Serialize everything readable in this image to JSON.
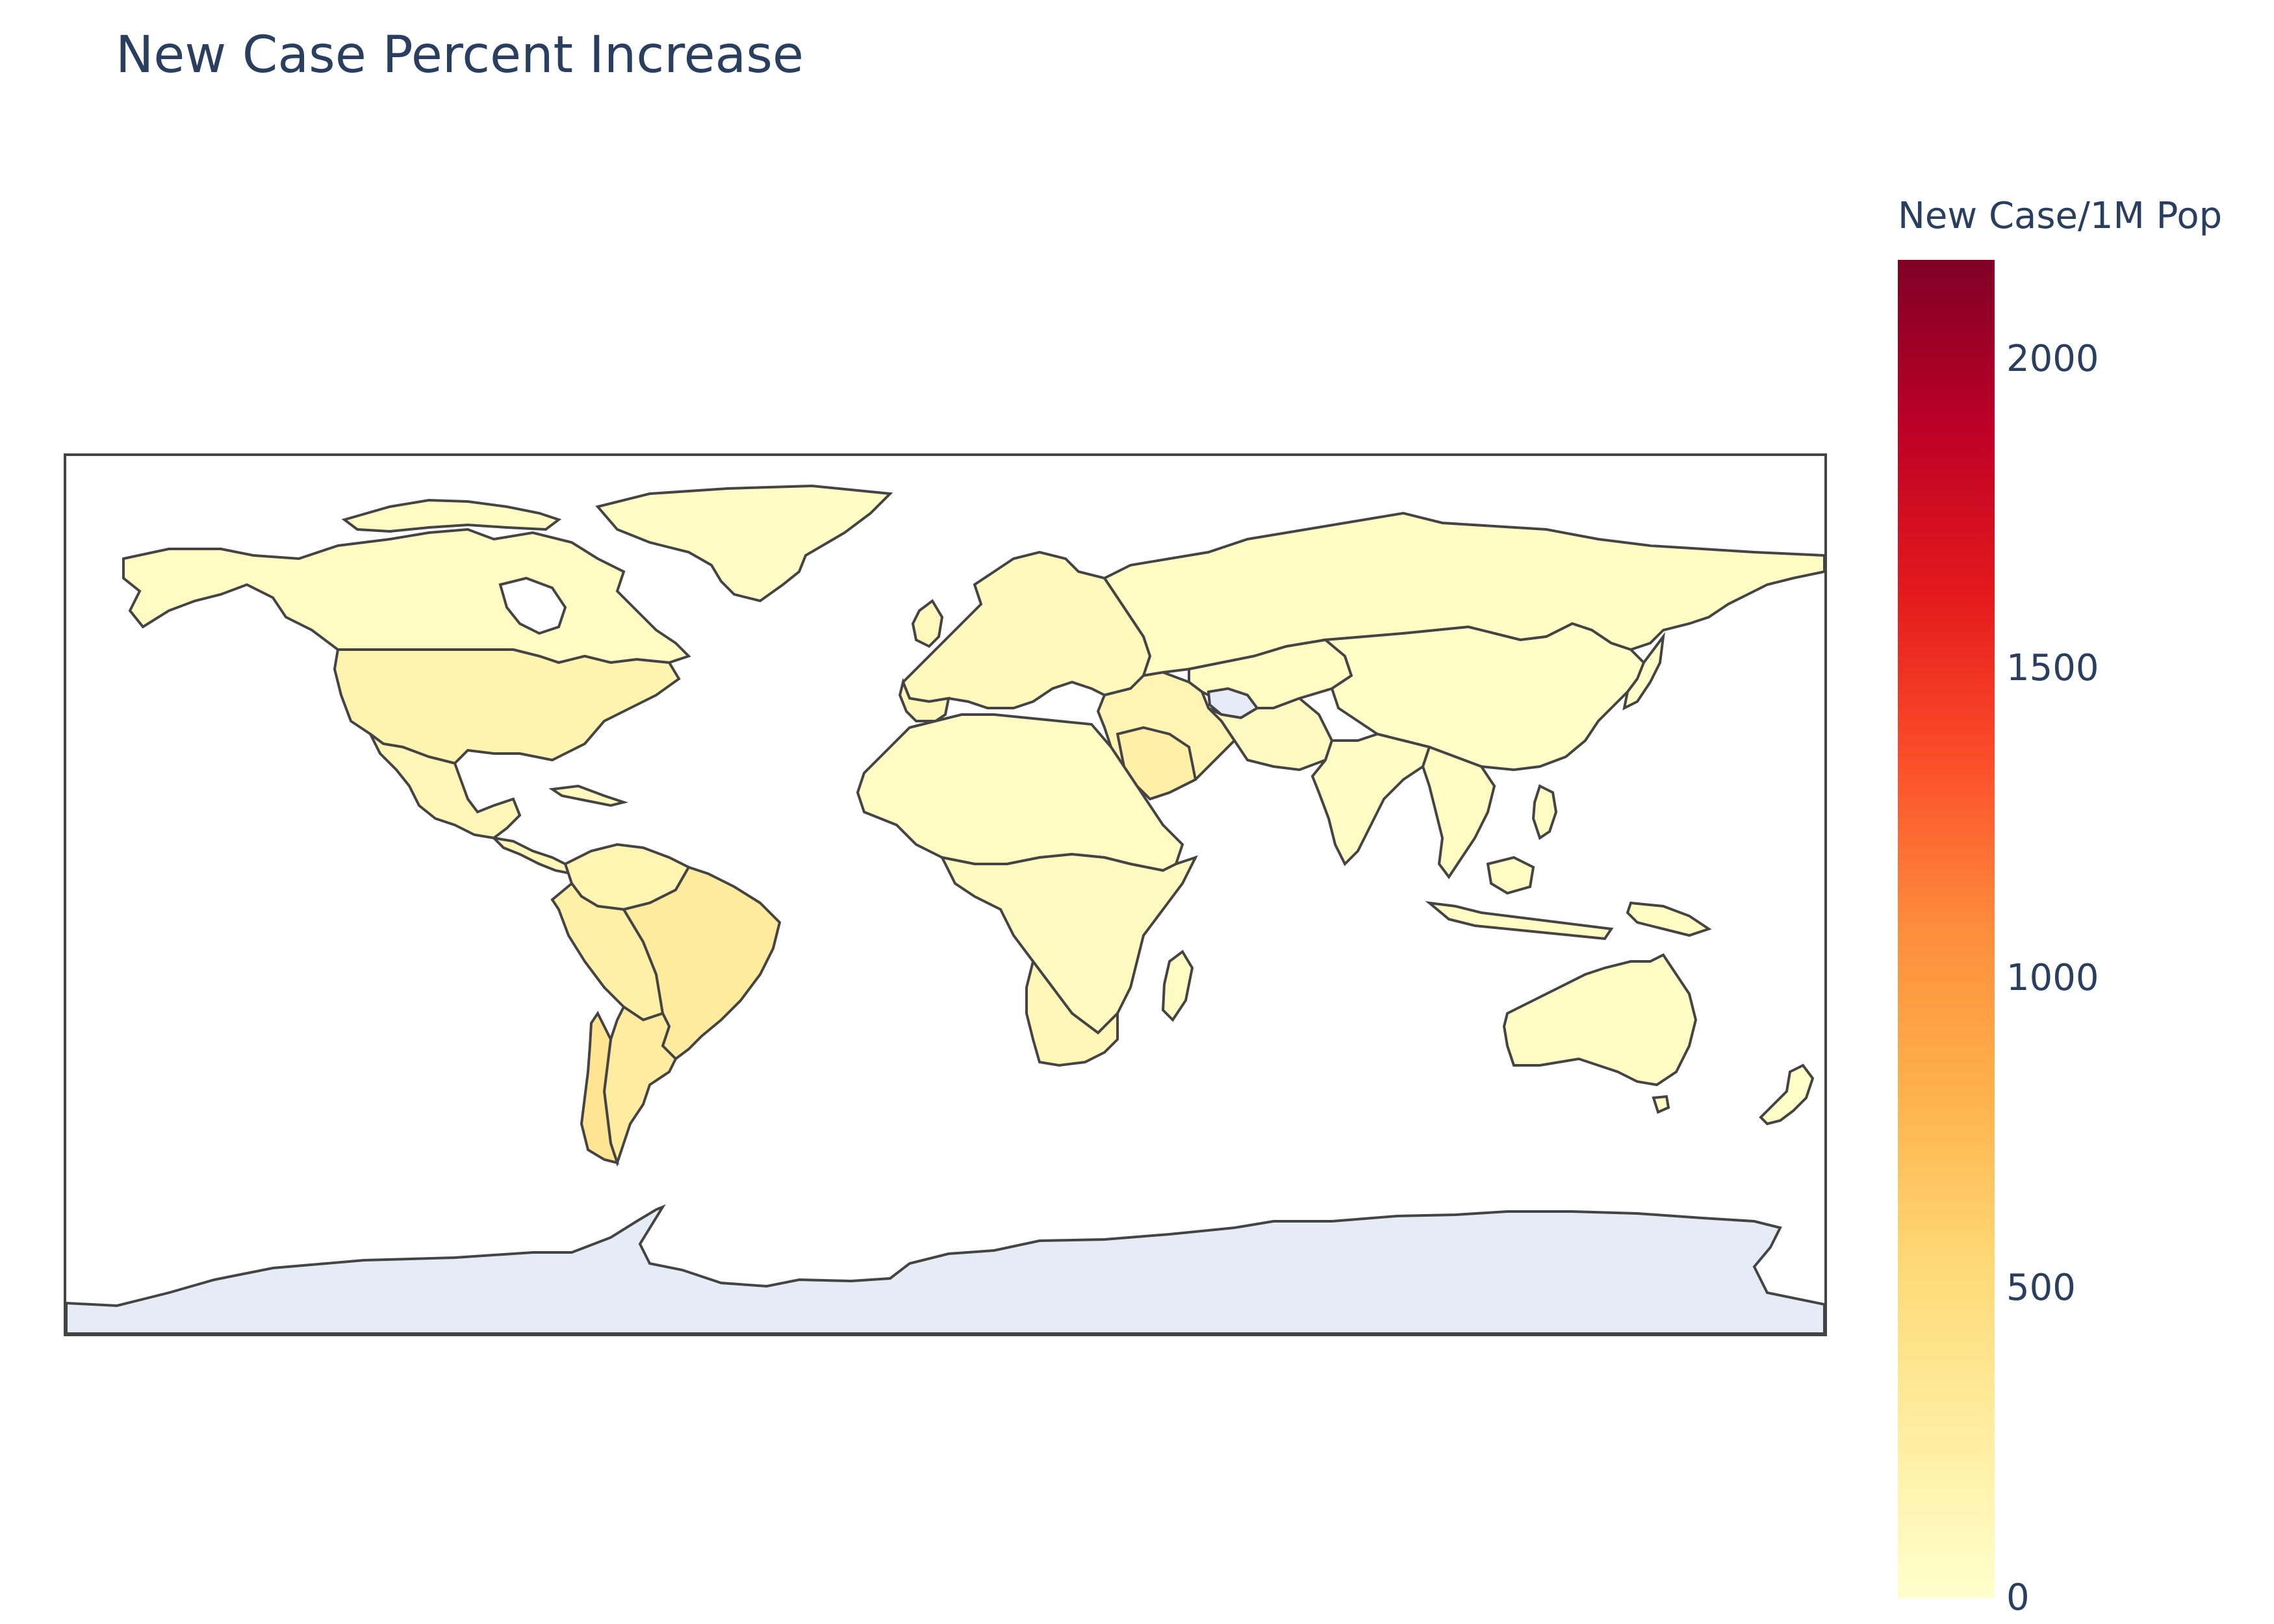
{
  "chart_data": {
    "type": "choropleth",
    "title": "New Case Percent Increase",
    "projection": "equirectangular",
    "ocean_color": "#ffffff",
    "land_color": "#e5ecf6",
    "border_color": "#444444",
    "colorscale": "YlOrRd",
    "colorscale_stops": [
      "#ffffcc",
      "#ffeda0",
      "#fed976",
      "#feb24c",
      "#fd8d3c",
      "#fc4e2a",
      "#e31a1c",
      "#bd0026",
      "#800026"
    ],
    "colorbar": {
      "title": "New Case/1M Pop",
      "range": [
        0,
        2160
      ],
      "ticks": [
        0,
        500,
        1000,
        1500,
        2000
      ],
      "tick_labels": [
        "0",
        "500",
        "1000",
        "1500",
        "2000"
      ]
    },
    "regions": [
      {
        "name": "Canada",
        "value": 60
      },
      {
        "name": "Greenland",
        "value": 30
      },
      {
        "name": "United States",
        "value": 180
      },
      {
        "name": "Mexico",
        "value": 120
      },
      {
        "name": "Central America",
        "value": 100
      },
      {
        "name": "Colombia",
        "value": 140
      },
      {
        "name": "Venezuela",
        "value": 110
      },
      {
        "name": "Peru",
        "value": 190
      },
      {
        "name": "Brazil",
        "value": 300
      },
      {
        "name": "Bolivia",
        "value": 200
      },
      {
        "name": "Argentina",
        "value": 230
      },
      {
        "name": "Chile",
        "value": 320
      },
      {
        "name": "Europe",
        "value": 90
      },
      {
        "name": "Russia",
        "value": 60
      },
      {
        "name": "Turkmenistan",
        "value": null
      },
      {
        "name": "Saudi Arabia",
        "value": 160
      },
      {
        "name": "North Africa",
        "value": 60
      },
      {
        "name": "Sub-Saharan Africa",
        "value": 70
      },
      {
        "name": "South Africa",
        "value": 120
      },
      {
        "name": "Madagascar",
        "value": 60
      },
      {
        "name": "India",
        "value": 40
      },
      {
        "name": "China",
        "value": 20
      },
      {
        "name": "Southeast Asia",
        "value": 50
      },
      {
        "name": "Australia",
        "value": 30
      },
      {
        "name": "New Zealand",
        "value": 20
      }
    ]
  }
}
